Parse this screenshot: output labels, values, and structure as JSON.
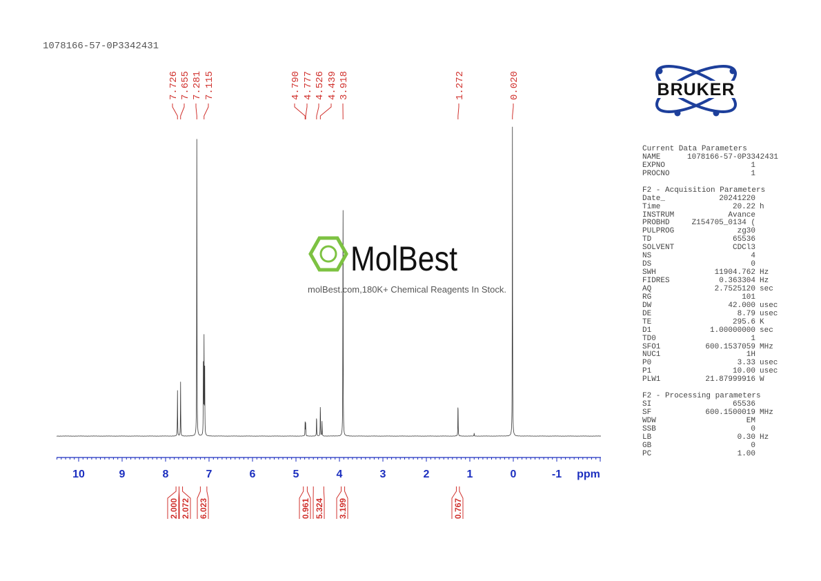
{
  "title": "1078166-57-0P3342431",
  "watermark": {
    "brand": "MolBest",
    "tagline": "molBest.com,180K+ Chemical Reagents In Stock.",
    "color": "#7dc242"
  },
  "logo": {
    "text": "BRUKER",
    "color": "#1d3f9b"
  },
  "colors": {
    "spectrum": "#333333",
    "labels": "#d0312d",
    "axis": "#1c2fbf"
  },
  "chart_data": {
    "type": "line",
    "xlabel": "ppm",
    "xlim": [
      10.5,
      -2.0
    ],
    "x_reversed": true,
    "x_ticks": [
      10,
      9,
      8,
      7,
      6,
      5,
      4,
      3,
      2,
      1,
      0,
      -1
    ],
    "x_tick_labels": [
      "10",
      "9",
      "8",
      "7",
      "6",
      "5",
      "4",
      "3",
      "2",
      "1",
      "0",
      "-1"
    ],
    "grid": false,
    "peak_labels": [
      "7.726",
      "7.655",
      "7.281",
      "7.115",
      "4.790",
      "4.777",
      "4.526",
      "4.439",
      "3.918",
      "1.272",
      "0.020"
    ],
    "peaks": [
      {
        "ppm": 7.726,
        "intensity": 14.7
      },
      {
        "ppm": 7.655,
        "intensity": 17.5
      },
      {
        "ppm": 7.281,
        "intensity": 100
      },
      {
        "ppm": 7.13,
        "intensity": 24
      },
      {
        "ppm": 7.115,
        "intensity": 30.4
      },
      {
        "ppm": 7.1,
        "intensity": 22
      },
      {
        "ppm": 4.79,
        "intensity": 4.4
      },
      {
        "ppm": 4.777,
        "intensity": 4.2
      },
      {
        "ppm": 4.526,
        "intensity": 7.1
      },
      {
        "ppm": 4.439,
        "intensity": 10.9
      },
      {
        "ppm": 4.4,
        "intensity": 5.0
      },
      {
        "ppm": 3.918,
        "intensity": 83.3
      },
      {
        "ppm": 1.272,
        "intensity": 11.6
      },
      {
        "ppm": 0.9,
        "intensity": 1.0
      },
      {
        "ppm": 0.02,
        "intensity": 99.8
      }
    ],
    "integrals": [
      {
        "from": 7.76,
        "to": 7.69,
        "value": "2.000"
      },
      {
        "from": 7.69,
        "to": 7.61,
        "value": "2.072"
      },
      {
        "from": 7.2,
        "to": 7.05,
        "value": "6.023"
      },
      {
        "from": 4.83,
        "to": 4.74,
        "value": "0.961"
      },
      {
        "from": 4.6,
        "to": 4.36,
        "value": "5.324"
      },
      {
        "from": 3.96,
        "to": 3.88,
        "value": "3.199"
      },
      {
        "from": 1.31,
        "to": 1.24,
        "value": "0.767"
      }
    ]
  },
  "parameters": {
    "current": {
      "heading": "Current Data Parameters",
      "rows": [
        {
          "label": "NAME",
          "value": "1078166-57-0P3342431",
          "unit": ""
        },
        {
          "label": "EXPNO",
          "value": "1",
          "unit": ""
        },
        {
          "label": "PROCNO",
          "value": "1",
          "unit": ""
        }
      ]
    },
    "acquisition": {
      "heading": "F2 - Acquisition Parameters",
      "rows": [
        {
          "label": "Date_",
          "value": "20241220",
          "unit": ""
        },
        {
          "label": "Time",
          "value": "20.22",
          "unit": "h"
        },
        {
          "label": "INSTRUM",
          "value": "Avance",
          "unit": ""
        },
        {
          "label": "PROBHD",
          "value": "Z154705_0134 (",
          "unit": ""
        },
        {
          "label": "PULPROG",
          "value": "zg30",
          "unit": ""
        },
        {
          "label": "TD",
          "value": "65536",
          "unit": ""
        },
        {
          "label": "SOLVENT",
          "value": "CDCl3",
          "unit": ""
        },
        {
          "label": "NS",
          "value": "4",
          "unit": ""
        },
        {
          "label": "DS",
          "value": "0",
          "unit": ""
        },
        {
          "label": "SWH",
          "value": "11904.762",
          "unit": "Hz"
        },
        {
          "label": "FIDRES",
          "value": "0.363304",
          "unit": "Hz"
        },
        {
          "label": "AQ",
          "value": "2.7525120",
          "unit": "sec"
        },
        {
          "label": "RG",
          "value": "101",
          "unit": ""
        },
        {
          "label": "DW",
          "value": "42.000",
          "unit": "usec"
        },
        {
          "label": "DE",
          "value": "8.79",
          "unit": "usec"
        },
        {
          "label": "TE",
          "value": "295.6",
          "unit": "K"
        },
        {
          "label": "D1",
          "value": "1.00000000",
          "unit": "sec"
        },
        {
          "label": "TD0",
          "value": "1",
          "unit": ""
        },
        {
          "label": "SFO1",
          "value": "600.1537059",
          "unit": "MHz"
        },
        {
          "label": "NUC1",
          "value": "1H",
          "unit": ""
        },
        {
          "label": "P0",
          "value": "3.33",
          "unit": "usec"
        },
        {
          "label": "P1",
          "value": "10.00",
          "unit": "usec"
        },
        {
          "label": "PLW1",
          "value": "21.87999916",
          "unit": "W"
        }
      ]
    },
    "processing": {
      "heading": "F2 - Processing parameters",
      "rows": [
        {
          "label": "SI",
          "value": "65536",
          "unit": ""
        },
        {
          "label": "SF",
          "value": "600.1500019",
          "unit": "MHz"
        },
        {
          "label": "WDW",
          "value": "EM",
          "unit": ""
        },
        {
          "label": "SSB",
          "value": "0",
          "unit": ""
        },
        {
          "label": "LB",
          "value": "0.30",
          "unit": "Hz"
        },
        {
          "label": "GB",
          "value": "0",
          "unit": ""
        },
        {
          "label": "PC",
          "value": "1.00",
          "unit": ""
        }
      ]
    }
  }
}
